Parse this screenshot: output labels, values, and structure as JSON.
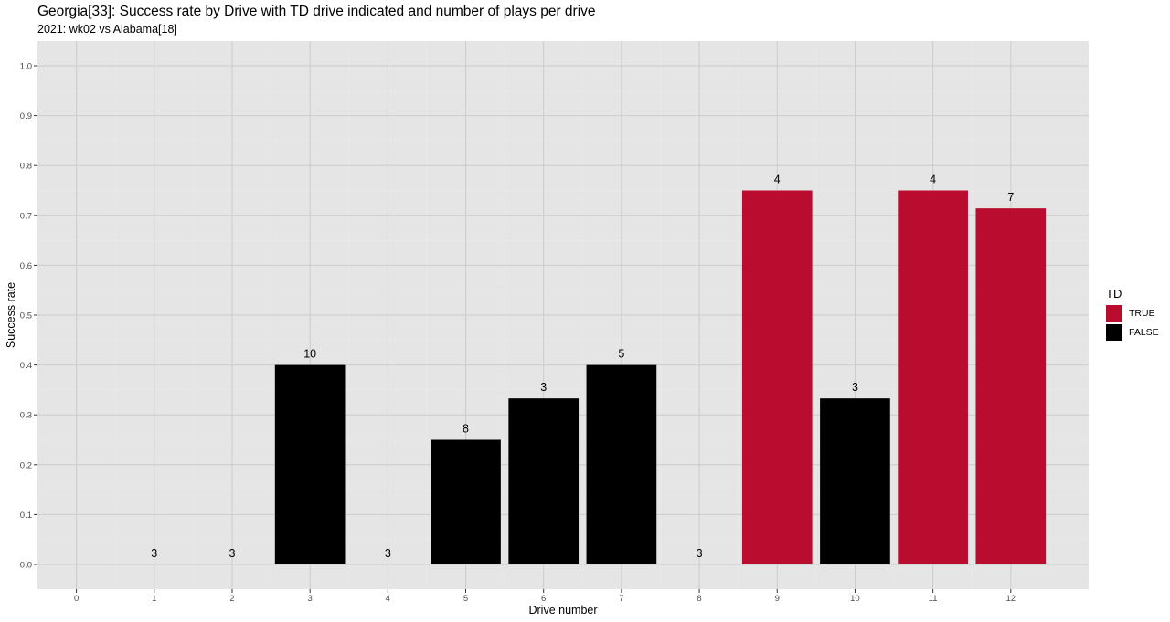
{
  "chart_data": {
    "type": "bar",
    "title": "Georgia[33]: Success rate by Drive with TD drive indicated and number of plays per drive",
    "subtitle": "2021: wk02 vs Alabama[18]",
    "xlabel": "Drive number",
    "ylabel": "Success rate",
    "xlim": [
      0,
      13
    ],
    "ylim": [
      0,
      1.0
    ],
    "x_ticks": [
      0,
      1,
      2,
      3,
      4,
      5,
      6,
      7,
      8,
      9,
      10,
      11,
      12
    ],
    "y_ticks": [
      0.0,
      0.1,
      0.2,
      0.3,
      0.4,
      0.5,
      0.6,
      0.7,
      0.8,
      0.9,
      1.0
    ],
    "y_tick_labels": [
      "0.0",
      "0.1",
      "0.2",
      "0.3",
      "0.4",
      "0.5",
      "0.6",
      "0.7",
      "0.8",
      "0.9",
      "1.0"
    ],
    "grid": true,
    "legend": {
      "title": "TD",
      "placement": "right",
      "entries": [
        {
          "label": "TRUE",
          "color": "#BA0C2F"
        },
        {
          "label": "FALSE",
          "color": "#000000"
        }
      ]
    },
    "bars": [
      {
        "drive": 1,
        "success_rate": 0.0,
        "plays": 3,
        "td": false
      },
      {
        "drive": 2,
        "success_rate": 0.0,
        "plays": 3,
        "td": false
      },
      {
        "drive": 3,
        "success_rate": 0.4,
        "plays": 10,
        "td": false
      },
      {
        "drive": 4,
        "success_rate": 0.0,
        "plays": 3,
        "td": false
      },
      {
        "drive": 5,
        "success_rate": 0.25,
        "plays": 8,
        "td": false
      },
      {
        "drive": 6,
        "success_rate": 0.333,
        "plays": 3,
        "td": false
      },
      {
        "drive": 7,
        "success_rate": 0.4,
        "plays": 5,
        "td": false
      },
      {
        "drive": 8,
        "success_rate": 0.0,
        "plays": 3,
        "td": false
      },
      {
        "drive": 9,
        "success_rate": 0.75,
        "plays": 4,
        "td": true
      },
      {
        "drive": 10,
        "success_rate": 0.333,
        "plays": 3,
        "td": false
      },
      {
        "drive": 11,
        "success_rate": 0.75,
        "plays": 4,
        "td": true
      },
      {
        "drive": 12,
        "success_rate": 0.714,
        "plays": 7,
        "td": true
      }
    ],
    "colors": {
      "panel": "#E5E5E5",
      "grid": "#CCCCCC",
      "true": "#BA0C2F",
      "false": "#000000"
    }
  }
}
